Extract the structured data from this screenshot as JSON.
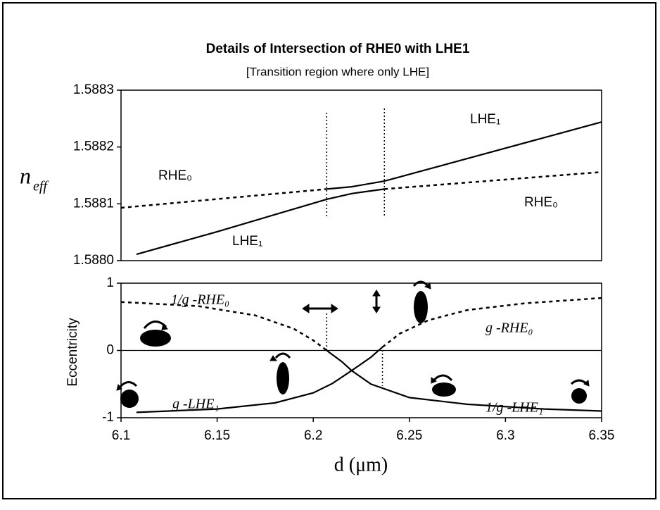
{
  "chart_data": [
    {
      "type": "line",
      "title": "Details of Intersection of RHE0 with LHE1",
      "subtitle": "[Transition region where only LHE]",
      "ylabel": "n",
      "ylabel_subscript": "eff",
      "xlim": [
        6.1,
        6.35
      ],
      "ylim": [
        1.588,
        1.5883
      ],
      "yticks": [
        {
          "value": 1.588,
          "label": "1.5880"
        },
        1.5881,
        1.5882,
        1.5883
      ],
      "transition_x": [
        6.207,
        6.237
      ],
      "series": [
        {
          "style": "solid",
          "x": [
            6.108,
            6.15,
            6.207,
            6.22,
            6.237
          ],
          "values": [
            1.588011,
            1.588051,
            1.588108,
            1.588118,
            1.588126
          ]
        },
        {
          "style": "solid",
          "x": [
            6.207,
            6.22,
            6.237,
            6.3,
            6.35
          ],
          "values": [
            1.588126,
            1.58813,
            1.58814,
            1.588198,
            1.588244
          ]
        },
        {
          "style": "dashed",
          "x": [
            6.1,
            6.207
          ],
          "values": [
            1.588093,
            1.588126
          ]
        },
        {
          "style": "dashed",
          "x": [
            6.237,
            6.35
          ],
          "values": [
            1.588126,
            1.588156
          ]
        }
      ],
      "annotations": [
        "LHE₁",
        "RHE₀",
        "RHE₀",
        "LHE₁"
      ]
    },
    {
      "type": "line",
      "ylabel": "Eccentricity",
      "xlabel": "d  (μm)",
      "xlim": [
        6.1,
        6.35
      ],
      "xticks": [
        6.1,
        6.15,
        6.2,
        6.25,
        6.3,
        6.35
      ],
      "ylim": [
        -1,
        1
      ],
      "yticks": [
        -1,
        0,
        1
      ],
      "zero_line": true,
      "transition_x": [
        6.207,
        6.236
      ],
      "series": [
        {
          "style": "solid",
          "x": [
            6.108,
            6.15,
            6.18,
            6.2,
            6.21,
            6.22,
            6.23,
            6.236
          ],
          "values": [
            -0.92,
            -0.87,
            -0.78,
            -0.63,
            -0.49,
            -0.3,
            -0.1,
            0.05
          ]
        },
        {
          "style": "solid",
          "x": [
            6.207,
            6.215,
            6.22,
            6.23,
            6.25,
            6.28,
            6.32,
            6.35
          ],
          "values": [
            0,
            -0.17,
            -0.3,
            -0.5,
            -0.7,
            -0.8,
            -0.87,
            -0.9
          ]
        },
        {
          "style": "dashed",
          "x": [
            6.1,
            6.14,
            6.17,
            6.19,
            6.2,
            6.207
          ],
          "values": [
            0.72,
            0.66,
            0.52,
            0.32,
            0.15,
            0
          ]
        },
        {
          "style": "dashed",
          "x": [
            6.236,
            6.245,
            6.26,
            6.28,
            6.31,
            6.35
          ],
          "values": [
            0.05,
            0.25,
            0.45,
            0.6,
            0.7,
            0.78
          ]
        }
      ],
      "annotations": [
        "1/g -RHE₀",
        "g -RHE₀",
        "g -LHE₁",
        "1/g -LHE₁"
      ]
    }
  ]
}
